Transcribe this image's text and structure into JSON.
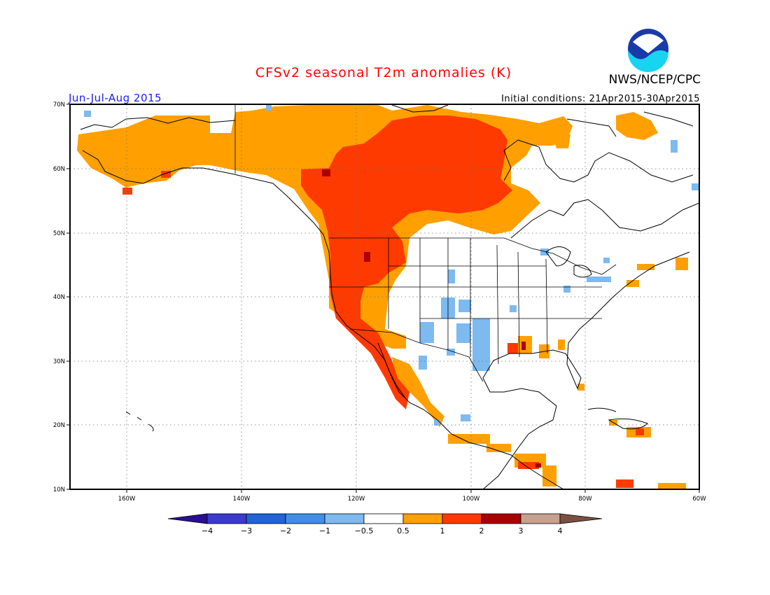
{
  "title": "CFSv2 seasonal T2m anomalies (K)",
  "period": "Jun-Jul-Aug 2015",
  "initial_conditions": "Initial conditions: 21Apr2015-30Apr2015",
  "agency": "NWS/NCEP/CPC",
  "logo": {
    "text": "NOAA",
    "icon": "noaa-logo-icon"
  },
  "map": {
    "lon_labels": [
      "160W",
      "140W",
      "120W",
      "100W",
      "80W",
      "60W"
    ],
    "lat_labels": [
      "70N",
      "60N",
      "50N",
      "40N",
      "30N",
      "20N",
      "10N"
    ]
  },
  "colorbar": {
    "ticks": [
      "−4",
      "−3",
      "−2",
      "−1",
      "−0.5",
      "0.5",
      "1",
      "2",
      "3",
      "4"
    ],
    "colors": [
      "#2a0f95",
      "#3a3ad0",
      "#1f64d8",
      "#3f8fe8",
      "#7cbaf0",
      "#ffffff",
      "#ffa000",
      "#ff3a00",
      "#aa0000",
      "#c8a090",
      "#7a5040"
    ]
  }
}
